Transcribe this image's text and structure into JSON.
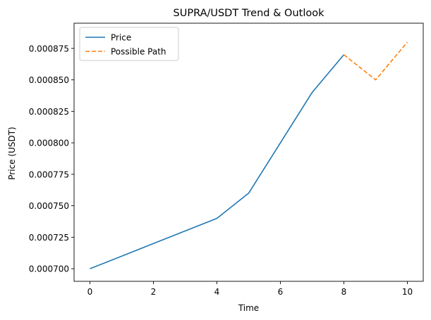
{
  "chart_data": {
    "type": "line",
    "title": "SUPRA/USDT Trend & Outlook",
    "xlabel": "Time",
    "ylabel": "Price (USDT)",
    "xlim": [
      -0.5,
      10.5
    ],
    "ylim": [
      0.00069,
      0.000895
    ],
    "x_ticks": [
      0,
      2,
      4,
      6,
      8,
      10
    ],
    "x_tick_labels": [
      "0",
      "2",
      "4",
      "6",
      "8",
      "10"
    ],
    "y_ticks": [
      0.0007,
      0.000725,
      0.00075,
      0.000775,
      0.0008,
      0.000825,
      0.00085,
      0.000875
    ],
    "y_tick_labels": [
      "0.000700",
      "0.000725",
      "0.000750",
      "0.000775",
      "0.000800",
      "0.000825",
      "0.000850",
      "0.000875"
    ],
    "grid": false,
    "legend_position": "top-left",
    "series": [
      {
        "name": "Price",
        "style": "solid",
        "color": "#1f77b4",
        "x": [
          0,
          1,
          2,
          3,
          4,
          5,
          6,
          7,
          8
        ],
        "y": [
          0.0007,
          0.00071,
          0.00072,
          0.00073,
          0.00074,
          0.00076,
          0.0008,
          0.00084,
          0.00087
        ]
      },
      {
        "name": "Possible Path",
        "style": "dashed",
        "color": "#ff7f0e",
        "x": [
          8,
          9,
          10
        ],
        "y": [
          0.00087,
          0.00085,
          0.00088
        ]
      }
    ]
  }
}
